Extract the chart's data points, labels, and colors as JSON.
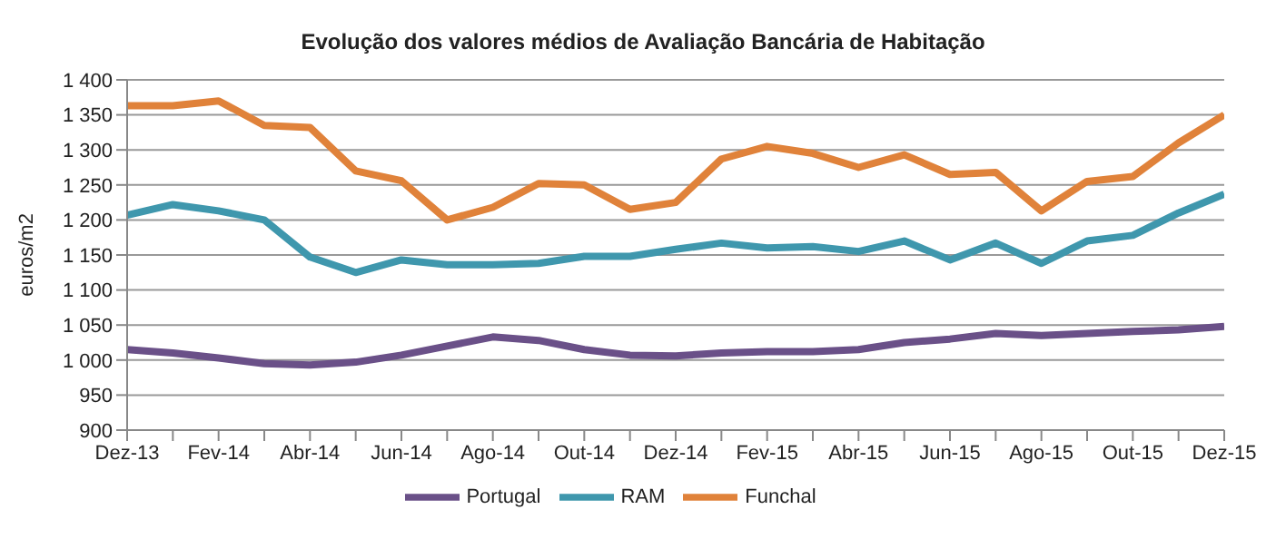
{
  "chart_data": {
    "type": "line",
    "title": "Evolução dos valores médios de Avaliação Bancária de Habitação",
    "ylabel": "euros/m2",
    "categories": [
      "Dez-13",
      null,
      "Fev-14",
      null,
      "Abr-14",
      null,
      "Jun-14",
      null,
      "Ago-14",
      null,
      "Out-14",
      null,
      "Dez-14",
      null,
      "Fev-15",
      null,
      "Abr-15",
      null,
      "Jun-15",
      null,
      "Ago-15",
      null,
      "Out-15",
      null,
      "Dez-15"
    ],
    "series": [
      {
        "name": "Portugal",
        "color": "#6a5088",
        "values": [
          1015,
          1010,
          1003,
          995,
          993,
          997,
          1007,
          1020,
          1033,
          1028,
          1015,
          1007,
          1006,
          1010,
          1012,
          1012,
          1015,
          1025,
          1030,
          1038,
          1035,
          1038,
          1041,
          1043,
          1048
        ]
      },
      {
        "name": "RAM",
        "color": "#3f97ad",
        "values": [
          1207,
          1222,
          1213,
          1200,
          1147,
          1125,
          1143,
          1136,
          1136,
          1138,
          1148,
          1148,
          1158,
          1167,
          1160,
          1162,
          1155,
          1170,
          1143,
          1167,
          1138,
          1170,
          1178,
          1210,
          1237
        ]
      },
      {
        "name": "Funchal",
        "color": "#e0823a",
        "values": [
          1363,
          1363,
          1370,
          1335,
          1332,
          1270,
          1256,
          1200,
          1218,
          1252,
          1250,
          1215,
          1225,
          1287,
          1305,
          1295,
          1275,
          1293,
          1265,
          1268,
          1213,
          1255,
          1262,
          1310,
          1350
        ]
      }
    ],
    "ylim": [
      900,
      1400
    ],
    "yticks": [
      {
        "value": 900,
        "label": "900"
      },
      {
        "value": 950,
        "label": "950"
      },
      {
        "value": 1000,
        "label": "1 000"
      },
      {
        "value": 1050,
        "label": "1 050"
      },
      {
        "value": 1100,
        "label": "1 100"
      },
      {
        "value": 1150,
        "label": "1 150"
      },
      {
        "value": 1200,
        "label": "1 200"
      },
      {
        "value": 1250,
        "label": "1 250"
      },
      {
        "value": 1300,
        "label": "1 300"
      },
      {
        "value": 1350,
        "label": "1 350"
      },
      {
        "value": 1400,
        "label": "1 400"
      }
    ],
    "grid": "y",
    "legend": "bottom",
    "marker": "none",
    "line_style": "solid"
  }
}
